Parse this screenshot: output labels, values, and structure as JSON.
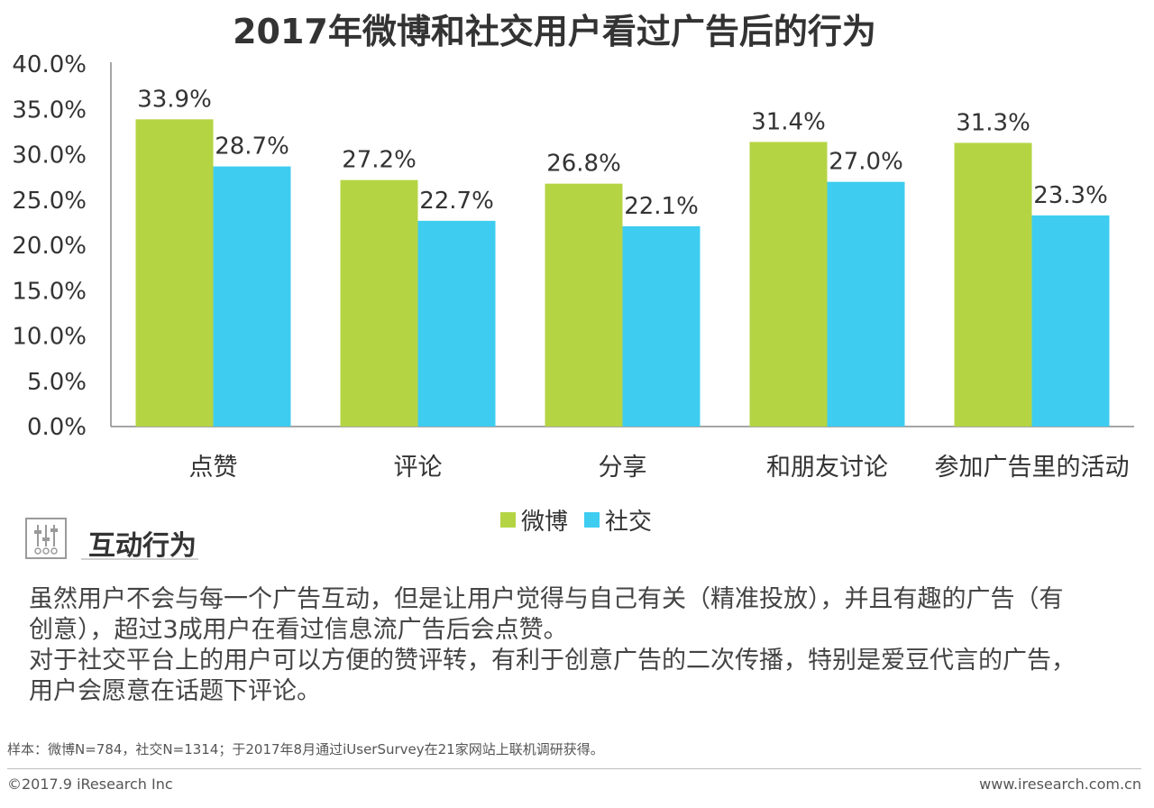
{
  "chart_data": {
    "type": "bar",
    "title": "2017年微博和社交用户看过广告后的行为",
    "categories": [
      "点赞",
      "评论",
      "分享",
      "和朋友讨论",
      "参加广告里的活动"
    ],
    "series": [
      {
        "name": "微博",
        "color": "#b5d444",
        "values": [
          33.9,
          27.2,
          26.8,
          31.4,
          31.3
        ],
        "labels": [
          "33.9%",
          "27.2%",
          "26.8%",
          "31.4%",
          "31.3%"
        ]
      },
      {
        "name": "社交",
        "color": "#3ecdf0",
        "values": [
          28.7,
          22.7,
          22.1,
          27.0,
          23.3
        ],
        "labels": [
          "28.7%",
          "22.7%",
          "22.1%",
          "27.0%",
          "23.3%"
        ]
      }
    ],
    "yticks": [
      "0.0%",
      "5.0%",
      "10.0%",
      "15.0%",
      "20.0%",
      "25.0%",
      "30.0%",
      "35.0%",
      "40.0%"
    ],
    "ylim": [
      0,
      40
    ],
    "xlabel": "",
    "ylabel": "",
    "legend": "bottom-center",
    "grid": false
  },
  "legend": {
    "items": [
      {
        "label": "微博",
        "color": "#b5d444"
      },
      {
        "label": "社交",
        "color": "#3ecdf0"
      }
    ]
  },
  "section": {
    "icon": "sliders-icon",
    "title": "互动行为"
  },
  "body": {
    "line1": "虽然用户不会与每一个广告互动，但是让用户觉得与自己有关（精准投放），并且有趣的广告（有创意），超过3成用户在看过信息流广告后会点赞。",
    "line2": "对于社交平台上的用户可以方便的赞评转，有利于创意广告的二次传播，特别是爱豆代言的广告，用户会愿意在话题下评论。"
  },
  "footer": {
    "sample": "样本：微博N=784，社交N=1314；于2017年8月通过iUserSurvey在21家网站上联机调研获得。",
    "copyright": "©2017.9 iResearch Inc",
    "website": "www.iresearch.com.cn"
  }
}
